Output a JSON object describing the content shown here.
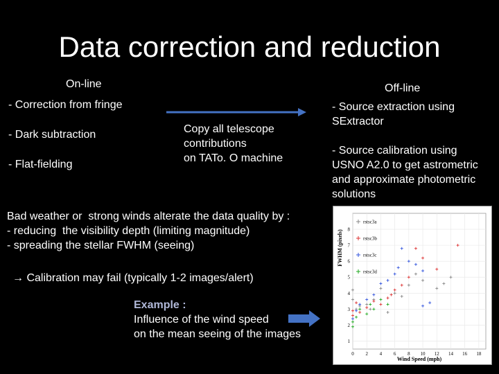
{
  "slide": {
    "title": "Data correction and reduction",
    "online_heading": "On-line",
    "offline_heading": "Off-line",
    "online_items": [
      "- Correction from fringe",
      "- Dark subtraction",
      "- Flat-fielding"
    ],
    "copy_lines": [
      "Copy all telescope",
      "contributions",
      "on TATo. O machine"
    ],
    "offline_items": [
      [
        "- Source extraction using",
        "SExtractor"
      ],
      [
        "- Source calibration using",
        "USNO A2.0 to get astrometric",
        "and approximate photometric",
        "solutions"
      ]
    ],
    "weather_lines": [
      "Bad weather or  strong winds alterate the data quality by :",
      "- reducing  the visibility depth (limiting magnitude)",
      "- spreading the stellar FWHM (seeing)"
    ],
    "calibration_note": "→ Calibration may fail (typically 1-2 images/alert)",
    "example_heading": "Example :",
    "example_lines": [
      "Influence of the wind speed",
      "on the mean seeing of the images"
    ],
    "colors": {
      "arrow": "#4472c4",
      "background": "#000000",
      "text": "#ffffff"
    }
  },
  "chart_data": {
    "type": "scatter",
    "xlabel": "Wind Speed (mph)",
    "ylabel": "FWHM (pixels)",
    "x_ticks": [
      0,
      2,
      4,
      6,
      8,
      10,
      12,
      14,
      16,
      18
    ],
    "y_ticks": [
      1,
      2,
      3,
      4,
      5,
      6,
      7,
      8
    ],
    "xlim": [
      0,
      19
    ],
    "ylim": [
      0.5,
      9
    ],
    "legend_placement": "top-left",
    "series": [
      {
        "name": "rstsc3a",
        "color": "#888888",
        "points": [
          [
            0,
            4.2
          ],
          [
            0,
            3.6
          ],
          [
            0.5,
            3.0
          ],
          [
            1,
            3.2
          ],
          [
            2,
            3.3
          ],
          [
            2.5,
            3.0
          ],
          [
            3,
            3.6
          ],
          [
            4,
            4.3
          ],
          [
            5,
            2.8
          ],
          [
            6,
            4.0
          ],
          [
            7,
            3.8
          ],
          [
            8,
            4.5
          ],
          [
            9,
            5.2
          ],
          [
            10,
            4.8
          ],
          [
            12,
            4.3
          ],
          [
            13,
            4.6
          ],
          [
            14,
            5.0
          ]
        ]
      },
      {
        "name": "rstsc3b",
        "color": "#dd3333",
        "points": [
          [
            0,
            2.6
          ],
          [
            0,
            2.9
          ],
          [
            0.5,
            3.4
          ],
          [
            1,
            2.8
          ],
          [
            2,
            3.1
          ],
          [
            3,
            3.5
          ],
          [
            4,
            3.3
          ],
          [
            5,
            3.7
          ],
          [
            5.5,
            3.9
          ],
          [
            6,
            4.2
          ],
          [
            7,
            4.5
          ],
          [
            8,
            5.0
          ],
          [
            9,
            6.8
          ],
          [
            10,
            6.2
          ],
          [
            12,
            5.5
          ],
          [
            15,
            7.0
          ]
        ]
      },
      {
        "name": "rstsc3c",
        "color": "#3355dd",
        "points": [
          [
            0,
            2.4
          ],
          [
            0.5,
            2.9
          ],
          [
            1,
            3.3
          ],
          [
            2,
            3.6
          ],
          [
            3,
            3.9
          ],
          [
            4,
            4.6
          ],
          [
            5,
            4.8
          ],
          [
            6,
            5.2
          ],
          [
            6.5,
            5.6
          ],
          [
            7,
            6.8
          ],
          [
            8,
            6.0
          ],
          [
            9,
            5.8
          ],
          [
            10,
            5.4
          ],
          [
            10,
            3.2
          ],
          [
            11,
            3.4
          ]
        ]
      },
      {
        "name": "rstsc3d",
        "color": "#22aa22",
        "points": [
          [
            0,
            2.2
          ],
          [
            0,
            1.9
          ],
          [
            0.5,
            2.5
          ],
          [
            1,
            3.0
          ],
          [
            2,
            2.7
          ],
          [
            2.5,
            3.3
          ],
          [
            3,
            3.0
          ],
          [
            4,
            3.6
          ],
          [
            5,
            3.3
          ]
        ]
      }
    ]
  }
}
